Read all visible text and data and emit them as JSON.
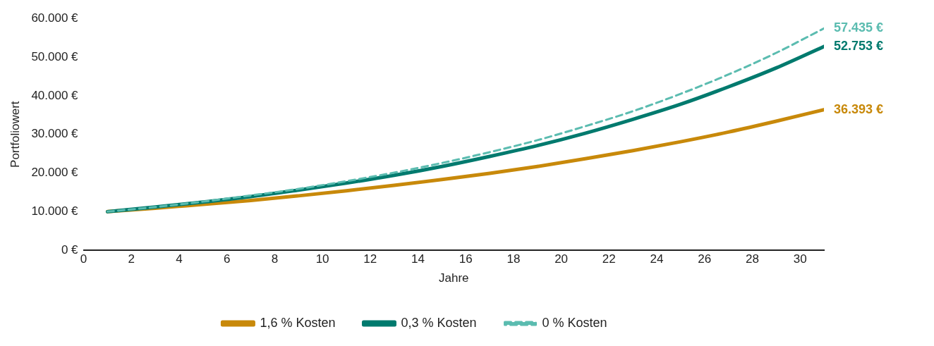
{
  "chart_data": {
    "type": "line",
    "xlabel": "Jahre",
    "ylabel": "Portfoliowert",
    "x": [
      1,
      3,
      5,
      7,
      9,
      11,
      13,
      15,
      17,
      19,
      21,
      23,
      25,
      27,
      29,
      31
    ],
    "xlim": [
      0,
      31
    ],
    "xticks": [
      0,
      2,
      4,
      6,
      8,
      10,
      12,
      14,
      16,
      18,
      20,
      22,
      24,
      26,
      28,
      30
    ],
    "ylim": [
      0,
      60000
    ],
    "yticks": [
      {
        "value": 0,
        "label": "0 €"
      },
      {
        "value": 10000,
        "label": "10.000 €"
      },
      {
        "value": 20000,
        "label": "20.000 €"
      },
      {
        "value": 30000,
        "label": "30.000 €"
      },
      {
        "value": 40000,
        "label": "40.000 €"
      },
      {
        "value": 50000,
        "label": "50.000 €"
      },
      {
        "value": 60000,
        "label": "60.000 €"
      }
    ],
    "grid": false,
    "legend": "bottom",
    "marker": "none",
    "series": [
      {
        "name": "1,6 % Kosten",
        "color": "#c8890a",
        "line_style": "solid",
        "values": [
          10000,
          10900,
          11900,
          12900,
          14100,
          15400,
          16800,
          18300,
          19900,
          21700,
          23700,
          25800,
          28100,
          30600,
          33400,
          36393
        ],
        "value_labels": [
          null,
          null,
          null,
          null,
          null,
          null,
          null,
          null,
          null,
          null,
          null,
          null,
          null,
          null,
          null,
          "36.393 €"
        ]
      },
      {
        "name": "0,3 % Kosten",
        "color": "#007a6e",
        "line_style": "solid",
        "values": [
          10000,
          11200,
          12500,
          13900,
          15600,
          17400,
          19400,
          21700,
          24300,
          27100,
          30300,
          33900,
          37800,
          42300,
          47200,
          52753
        ],
        "value_labels": [
          null,
          null,
          null,
          null,
          null,
          null,
          null,
          null,
          null,
          null,
          null,
          null,
          null,
          null,
          null,
          "52.753 €"
        ]
      },
      {
        "name": "0 % Kosten",
        "color": "#5bbcb0",
        "line_style": "dashed",
        "values": [
          10000,
          11200,
          12600,
          14200,
          15900,
          17900,
          20100,
          22600,
          25400,
          28500,
          32100,
          36000,
          40500,
          45500,
          51100,
          57435
        ],
        "value_labels": [
          null,
          null,
          null,
          null,
          null,
          null,
          null,
          null,
          null,
          null,
          null,
          null,
          null,
          null,
          null,
          "57.435 €"
        ]
      }
    ]
  }
}
